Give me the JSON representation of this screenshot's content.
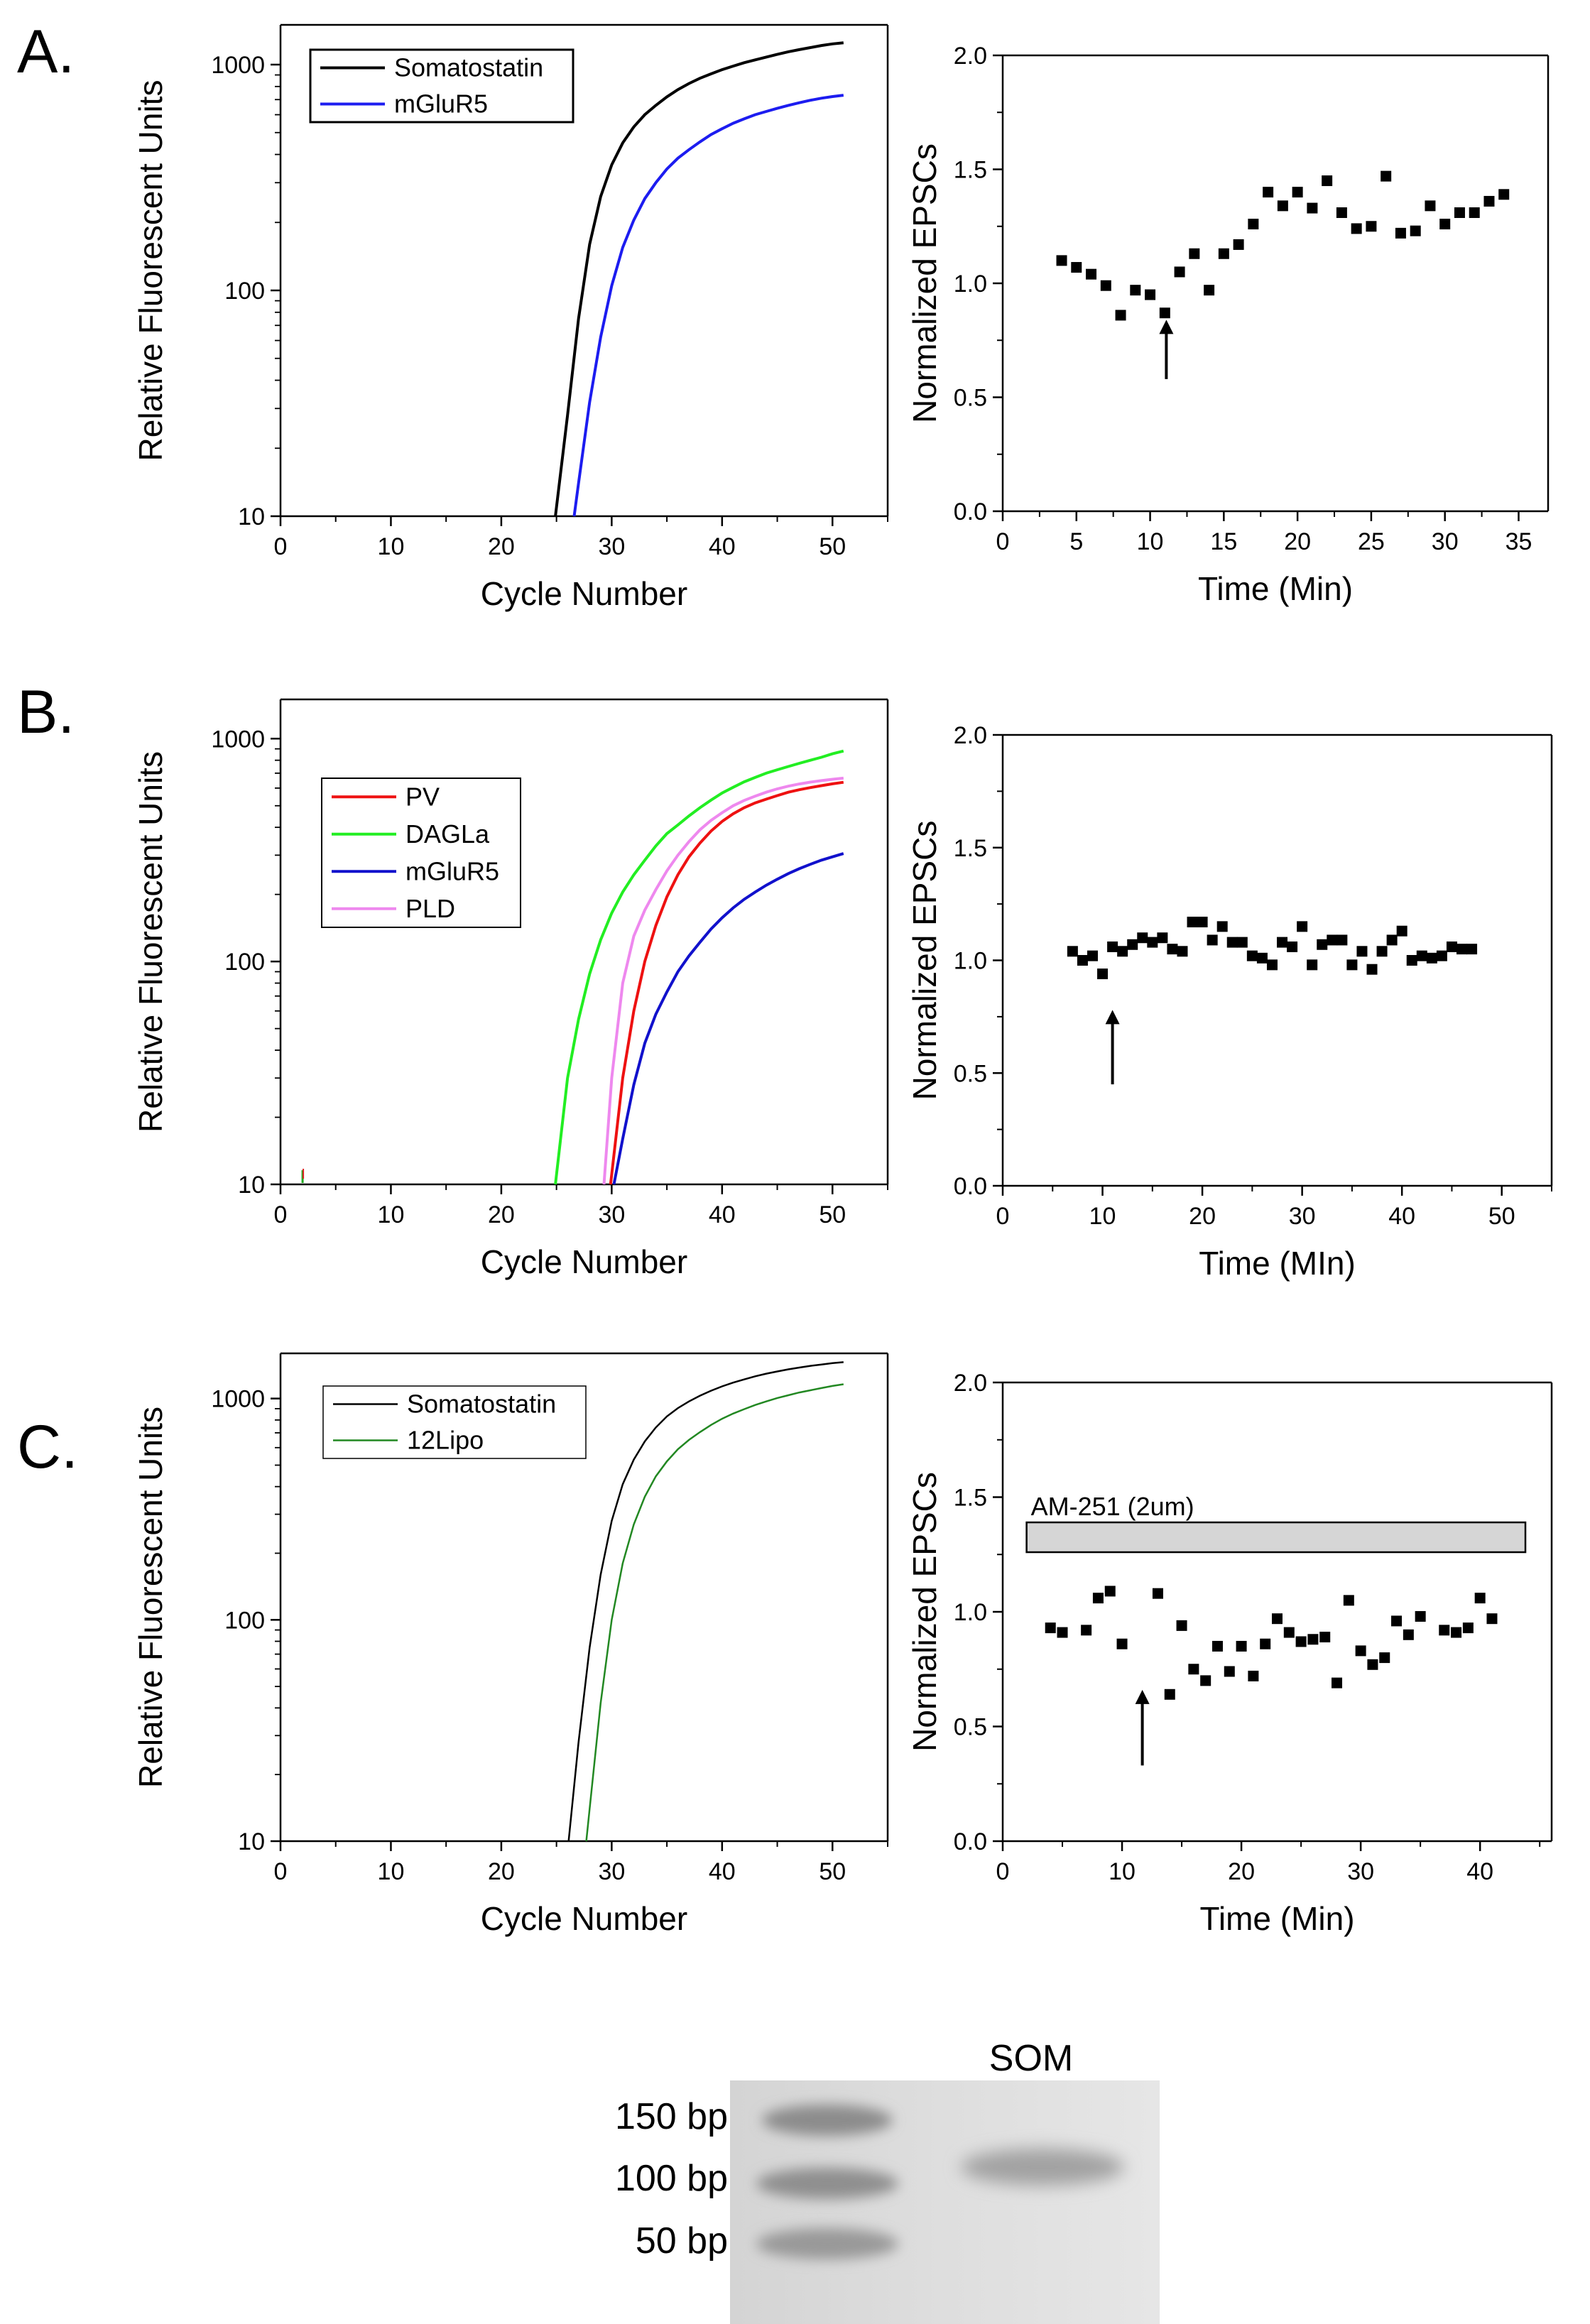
{
  "panels": [
    {
      "letter": "A."
    },
    {
      "letter": "B."
    },
    {
      "letter": "C."
    }
  ],
  "chart_data": [
    {
      "id": "A-pcr",
      "type": "line",
      "title": "",
      "xlabel": "Cycle Number",
      "ylabel": "Relative Fluorescent Units",
      "yscale": "log",
      "xlim": [
        0,
        55
      ],
      "ylim": [
        10,
        1500
      ],
      "xticks": [
        0,
        10,
        20,
        30,
        40,
        50
      ],
      "yticks": [
        10,
        100,
        1000
      ],
      "legend_position": "top-left",
      "series": [
        {
          "name": "Somatostatin",
          "color": "#000000",
          "ct": 24.9,
          "x": [
            24.9,
            26,
            27,
            28,
            29,
            30,
            31,
            32,
            33,
            34,
            35,
            36,
            37,
            38,
            39,
            40,
            41,
            42,
            43,
            44,
            45,
            46,
            47,
            48,
            49,
            50,
            51
          ],
          "y": [
            10,
            28,
            75,
            160,
            260,
            360,
            450,
            530,
            600,
            660,
            720,
            775,
            825,
            870,
            910,
            950,
            985,
            1020,
            1050,
            1080,
            1110,
            1140,
            1165,
            1190,
            1215,
            1235,
            1250
          ]
        },
        {
          "name": "mGluR5",
          "color": "#1c1cf0",
          "ct": 26.6,
          "x": [
            26.6,
            27,
            28,
            29,
            30,
            31,
            32,
            33,
            34,
            35,
            36,
            37,
            38,
            39,
            40,
            41,
            42,
            43,
            44,
            45,
            46,
            47,
            48,
            49,
            50,
            51
          ],
          "y": [
            10,
            14,
            32,
            62,
            105,
            155,
            205,
            255,
            300,
            345,
            385,
            420,
            455,
            490,
            520,
            550,
            575,
            600,
            620,
            640,
            660,
            678,
            695,
            710,
            722,
            732
          ]
        }
      ]
    },
    {
      "id": "A-epsc",
      "type": "scatter",
      "title": "",
      "xlabel": "Time (Min)",
      "ylabel": "Normalized EPSCs",
      "xlim": [
        0,
        37
      ],
      "ylim": [
        0,
        2.0
      ],
      "xticks": [
        0,
        5,
        10,
        15,
        20,
        25,
        30,
        35
      ],
      "yticks": [
        0.0,
        0.5,
        1.0,
        1.5,
        2.0
      ],
      "arrow_x": 11.1,
      "arrow_y_range": [
        0.58,
        0.84
      ],
      "x": [
        4,
        5,
        6,
        7,
        8,
        9,
        10,
        11,
        12,
        13,
        14,
        15,
        16,
        17,
        18,
        19,
        20,
        21,
        22,
        23,
        24,
        25,
        26,
        27,
        28,
        29,
        30,
        31,
        32,
        33,
        34
      ],
      "y": [
        1.1,
        1.07,
        1.04,
        0.99,
        0.86,
        0.97,
        0.95,
        0.87,
        1.05,
        1.13,
        0.97,
        1.13,
        1.17,
        1.26,
        1.4,
        1.34,
        1.4,
        1.33,
        1.45,
        1.31,
        1.24,
        1.25,
        1.47,
        1.22,
        1.23,
        1.34,
        1.26,
        1.31,
        1.31,
        1.36,
        1.39
      ]
    },
    {
      "id": "B-pcr",
      "type": "line",
      "title": "",
      "xlabel": "Cycle Number",
      "ylabel": "Relative Fluorescent Units",
      "yscale": "log",
      "xlim": [
        0,
        55
      ],
      "ylim": [
        10,
        1500
      ],
      "xticks": [
        0,
        10,
        20,
        30,
        40,
        50
      ],
      "yticks": [
        10,
        100,
        1000
      ],
      "legend_position": "top-left",
      "series": [
        {
          "name": "PV",
          "color": "#ee1111",
          "ct": 29.9,
          "x": [
            29.9,
            31,
            32,
            33,
            34,
            35,
            36,
            37,
            38,
            39,
            40,
            41,
            42,
            43,
            44,
            45,
            46,
            47,
            48,
            49,
            50,
            51
          ],
          "y": [
            10,
            30,
            60,
            100,
            145,
            195,
            245,
            295,
            340,
            385,
            425,
            460,
            490,
            515,
            535,
            555,
            575,
            590,
            603,
            615,
            627,
            637
          ]
        },
        {
          "name": "DAGLa",
          "color": "#22ee22",
          "ct": 24.9,
          "x": [
            24.9,
            26,
            27,
            28,
            29,
            30,
            31,
            32,
            33,
            34,
            35,
            36,
            37,
            38,
            39,
            40,
            41,
            42,
            43,
            44,
            45,
            46,
            47,
            48,
            49,
            50,
            51
          ],
          "y": [
            10,
            30,
            55,
            88,
            125,
            165,
            205,
            245,
            285,
            330,
            375,
            410,
            450,
            490,
            530,
            570,
            605,
            640,
            670,
            700,
            725,
            750,
            775,
            800,
            825,
            855,
            880
          ]
        },
        {
          "name": "mGluR5",
          "color": "#1111cc",
          "ct": 30.2,
          "x": [
            30.2,
            31,
            32,
            33,
            34,
            35,
            36,
            37,
            38,
            39,
            40,
            41,
            42,
            43,
            44,
            45,
            46,
            47,
            48,
            49,
            50,
            51
          ],
          "y": [
            10,
            16,
            28,
            43,
            58,
            73,
            90,
            106,
            122,
            140,
            157,
            174,
            190,
            205,
            220,
            234,
            248,
            261,
            273,
            285,
            295,
            305
          ]
        },
        {
          "name": "PLD",
          "color": "#ee88ee",
          "ct": 29.3,
          "x": [
            29.3,
            30,
            31,
            32,
            33,
            34,
            35,
            36,
            37,
            38,
            39,
            40,
            41,
            42,
            43,
            44,
            45,
            46,
            47,
            48,
            49,
            50,
            51
          ],
          "y": [
            10,
            30,
            80,
            130,
            170,
            210,
            255,
            300,
            345,
            390,
            430,
            465,
            500,
            528,
            552,
            575,
            595,
            612,
            626,
            638,
            648,
            657,
            665
          ]
        }
      ]
    },
    {
      "id": "B-epsc",
      "type": "scatter",
      "title": "",
      "xlabel": "Time (MIn)",
      "ylabel": "Normalized EPSCs",
      "xlim": [
        0,
        55
      ],
      "ylim": [
        0,
        2.0
      ],
      "xticks": [
        0,
        10,
        20,
        30,
        40,
        50
      ],
      "yticks": [
        0.0,
        0.5,
        1.0,
        1.5,
        2.0
      ],
      "arrow_x": 11,
      "arrow_y_range": [
        0.45,
        0.78
      ],
      "x": [
        7,
        8,
        9,
        10,
        11,
        12,
        13,
        14,
        15,
        16,
        17,
        18,
        19,
        20,
        21,
        22,
        23,
        24,
        25,
        26,
        27,
        28,
        29,
        30,
        31,
        32,
        33,
        34,
        35,
        36,
        37,
        38,
        39,
        40,
        41,
        42,
        43,
        44,
        45,
        46,
        47
      ],
      "y": [
        1.04,
        1.0,
        1.02,
        0.94,
        1.06,
        1.04,
        1.07,
        1.1,
        1.08,
        1.1,
        1.05,
        1.04,
        1.17,
        1.17,
        1.09,
        1.15,
        1.08,
        1.08,
        1.02,
        1.01,
        0.98,
        1.08,
        1.06,
        1.15,
        0.98,
        1.07,
        1.09,
        1.09,
        0.98,
        1.04,
        0.96,
        1.04,
        1.09,
        1.13,
        1.0,
        1.02,
        1.01,
        1.02,
        1.06,
        1.05,
        1.05
      ]
    },
    {
      "id": "C-pcr",
      "type": "line",
      "title": "",
      "xlabel": "Cycle Number",
      "ylabel": "Relative Fluorescent Units",
      "yscale": "log",
      "xlim": [
        0,
        55
      ],
      "ylim": [
        10,
        1600
      ],
      "xticks": [
        0,
        10,
        20,
        30,
        40,
        50
      ],
      "yticks": [
        10,
        100,
        1000
      ],
      "legend_position": "top-left",
      "series": [
        {
          "name": "Somatostatin",
          "color": "#000000",
          "ct": 26.1,
          "x": [
            26.1,
            27,
            28,
            29,
            30,
            31,
            32,
            33,
            34,
            35,
            36,
            37,
            38,
            39,
            40,
            41,
            42,
            43,
            44,
            45,
            46,
            47,
            48,
            49,
            50,
            51
          ],
          "y": [
            10,
            28,
            75,
            160,
            280,
            410,
            530,
            640,
            740,
            830,
            905,
            970,
            1030,
            1085,
            1135,
            1180,
            1220,
            1260,
            1295,
            1325,
            1355,
            1380,
            1405,
            1425,
            1445,
            1460
          ]
        },
        {
          "name": "12Lipo",
          "color": "#228822",
          "ct": 27.7,
          "x": [
            27.7,
            28,
            29,
            30,
            31,
            32,
            33,
            34,
            35,
            36,
            37,
            38,
            39,
            40,
            41,
            42,
            43,
            44,
            45,
            46,
            47,
            48,
            49,
            50,
            51
          ],
          "y": [
            10,
            14,
            42,
            100,
            180,
            270,
            360,
            445,
            520,
            590,
            650,
            705,
            760,
            810,
            855,
            895,
            935,
            970,
            1005,
            1035,
            1065,
            1090,
            1115,
            1140,
            1160
          ]
        }
      ]
    },
    {
      "id": "C-epsc",
      "type": "scatter",
      "title": "",
      "xlabel": "Time (Min)",
      "ylabel": "Normalized EPSCs",
      "xlim": [
        0,
        46
      ],
      "ylim": [
        0,
        2.0
      ],
      "xticks": [
        0,
        10,
        20,
        30,
        40
      ],
      "yticks": [
        0.0,
        0.5,
        1.0,
        1.5,
        2.0
      ],
      "arrow_x": 11.7,
      "arrow_y_range": [
        0.33,
        0.66
      ],
      "drug_bar": {
        "label": "AM-251 (2um)",
        "x_start": 2,
        "x_end": 43.8,
        "y_low": 1.26,
        "y_high": 1.39,
        "fill": "#d6d6d6"
      },
      "x": [
        4,
        5,
        7,
        8,
        9,
        10,
        13,
        14,
        15,
        16,
        17,
        18,
        19,
        20,
        21,
        22,
        23,
        24,
        25,
        26,
        27,
        28,
        29,
        30,
        31,
        32,
        33,
        34,
        35,
        37,
        38,
        39,
        40,
        41
      ],
      "y": [
        0.93,
        0.91,
        0.92,
        1.06,
        1.09,
        0.86,
        1.08,
        0.64,
        0.94,
        0.75,
        0.7,
        0.85,
        0.74,
        0.85,
        0.72,
        0.86,
        0.97,
        0.91,
        0.87,
        0.88,
        0.89,
        0.69,
        1.05,
        0.83,
        0.77,
        0.8,
        0.96,
        0.9,
        0.98,
        0.92,
        0.91,
        0.93,
        1.06,
        0.97
      ]
    }
  ],
  "legends": {
    "A": [
      "Somatostatin",
      "mGluR5"
    ],
    "B": [
      "PV",
      "DAGLa",
      "mGluR5",
      "PLD"
    ],
    "C": [
      "Somatostatin",
      "12Lipo"
    ]
  },
  "drug_label": "AM-251 (2um)",
  "gel": {
    "lane_label": "SOM",
    "markers": [
      "150 bp",
      "100 bp",
      "50 bp"
    ]
  }
}
